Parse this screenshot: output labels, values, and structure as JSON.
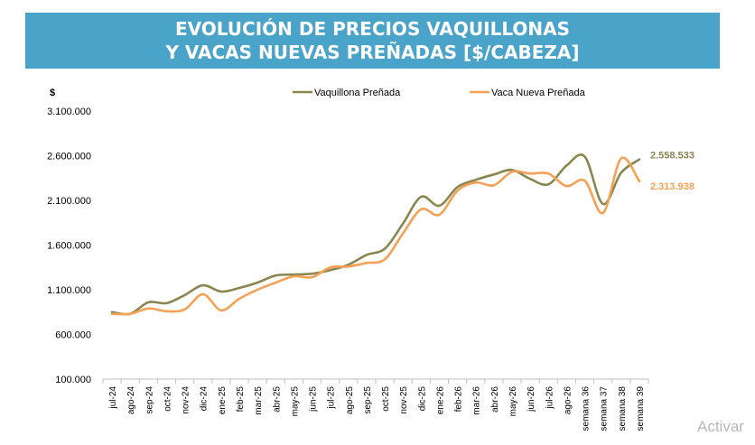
{
  "title": {
    "line1": "EVOLUCIÓN DE PRECIOS VAQUILLONAS",
    "line2": "Y VACAS NUEVAS PREÑADAS [$/CABEZA]"
  },
  "watermark": "Activar",
  "chart_data": {
    "type": "line",
    "ylabel": "$",
    "ylim": [
      100000,
      3100000
    ],
    "yticks": [
      100000,
      600000,
      1100000,
      1600000,
      2100000,
      2600000,
      3100000
    ],
    "ytick_labels": [
      "100.000",
      "600.000",
      "1.100.000",
      "1.600.000",
      "2.100.000",
      "2.600.000",
      "3.100.000"
    ],
    "grid": false,
    "legend_position": "top",
    "categories": [
      "jul-24",
      "ago-24",
      "sep-24",
      "oct-24",
      "nov-24",
      "dic-24",
      "ene-25",
      "feb-25",
      "mar-25",
      "abr-25",
      "may-25",
      "jun-25",
      "jul-25",
      "ago-25",
      "sep-25",
      "oct-25",
      "nov-25",
      "dic-25",
      "ene-26",
      "feb-26",
      "mar-26",
      "abr-26",
      "may-26",
      "jun-26",
      "jul-26",
      "ago-26",
      "semana 36",
      "semana 37",
      "semana 38",
      "semana 39"
    ],
    "series": [
      {
        "name": "Vaquillona Preñada",
        "color": "#8b8650",
        "values": [
          850000,
          830000,
          960000,
          950000,
          1040000,
          1150000,
          1080000,
          1120000,
          1180000,
          1260000,
          1270000,
          1280000,
          1320000,
          1380000,
          1490000,
          1560000,
          1840000,
          2140000,
          2040000,
          2250000,
          2330000,
          2390000,
          2440000,
          2340000,
          2280000,
          2490000,
          2590000,
          2060000,
          2410000,
          2558533
        ],
        "end_label": "2.558.533"
      },
      {
        "name": "Vaca Nueva Preñada",
        "color": "#f4a055",
        "values": [
          830000,
          830000,
          890000,
          860000,
          880000,
          1050000,
          870000,
          1000000,
          1100000,
          1180000,
          1250000,
          1240000,
          1350000,
          1360000,
          1400000,
          1440000,
          1730000,
          2000000,
          1940000,
          2210000,
          2300000,
          2270000,
          2420000,
          2400000,
          2400000,
          2260000,
          2320000,
          1960000,
          2570000,
          2313938
        ],
        "end_label": "2.313.938"
      }
    ]
  }
}
